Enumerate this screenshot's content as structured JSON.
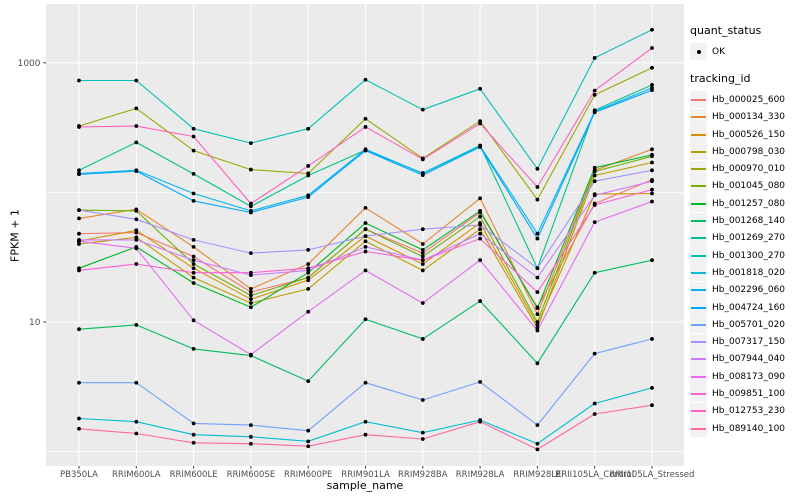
{
  "chart_data": {
    "type": "line",
    "title": "",
    "xlabel": "sample_name",
    "ylabel": "FPKM + 1",
    "y_scale": "log10",
    "ylim": [
      1,
      2600
    ],
    "grid": true,
    "y_ticks_labeled": [
      10,
      1000
    ],
    "y_gridlines_major": [
      10,
      1000
    ],
    "y_gridlines_minor": [
      1,
      100
    ],
    "legend_position": "right",
    "categories": [
      "PB350LA",
      "RRIM600LA",
      "RRIM600LE",
      "RRIM600SE",
      "RRIM600PE",
      "RRIM901LA",
      "RRIM928BA",
      "RRIM928LA",
      "RRIM928LE",
      "RRII105LA_Control",
      "RRII105LA_Stressed"
    ],
    "legend": {
      "quant_status_title": "quant_status",
      "quant_status_items": [
        "OK"
      ],
      "tracking_title": "tracking_id"
    },
    "point_color": "#000000",
    "series": [
      {
        "name": "Hb_000025_600",
        "color": "#F8766D",
        "values": [
          48,
          49,
          32,
          17,
          22,
          52,
          34,
          70,
          13,
          82,
          125
        ]
      },
      {
        "name": "Hb_000134_330",
        "color": "#E9842C",
        "values": [
          63,
          74,
          38,
          18,
          28,
          76,
          40,
          90,
          11.5,
          148,
          215
        ]
      },
      {
        "name": "Hb_000526_150",
        "color": "#D69100",
        "values": [
          42,
          51,
          26,
          15,
          21,
          46,
          28,
          58,
          9.5,
          97,
          98
        ]
      },
      {
        "name": "Hb_000798_030",
        "color": "#BC9D00",
        "values": [
          40,
          45,
          22,
          14,
          18,
          42,
          25,
          52,
          9,
          135,
          170
        ]
      },
      {
        "name": "Hb_000970_010",
        "color": "#9CA700",
        "values": [
          325,
          445,
          210,
          150,
          140,
          370,
          183,
          355,
          88,
          565,
          915
        ]
      },
      {
        "name": "Hb_001045_080",
        "color": "#6FB000",
        "values": [
          73,
          72,
          28,
          16,
          22,
          52,
          32,
          65,
          10,
          145,
          190
        ]
      },
      {
        "name": "Hb_001257_080",
        "color": "#00B822",
        "values": [
          26,
          38,
          20,
          13,
          24,
          58,
          36,
          72,
          12.8,
          155,
          195
        ]
      },
      {
        "name": "Hb_001268_140",
        "color": "#00BD61",
        "values": [
          8.8,
          9.5,
          6.2,
          5.5,
          3.5,
          10.5,
          7.4,
          14.5,
          4.8,
          24,
          30
        ]
      },
      {
        "name": "Hb_001269_270",
        "color": "#00C08E",
        "values": [
          148,
          243,
          139,
          78,
          135,
          212,
          141,
          230,
          26,
          430,
          675
        ]
      },
      {
        "name": "Hb_001300_270",
        "color": "#00C0B3",
        "values": [
          730,
          730,
          310,
          240,
          310,
          740,
          435,
          630,
          152,
          1090,
          1800
        ]
      },
      {
        "name": "Hb_001818_020",
        "color": "#00BDD3",
        "values": [
          1.8,
          1.7,
          1.35,
          1.3,
          1.2,
          1.7,
          1.4,
          1.75,
          1.15,
          2.35,
          3.1
        ]
      },
      {
        "name": "Hb_002296_060",
        "color": "#00B5EE",
        "values": [
          140,
          148,
          98,
          72,
          95,
          215,
          140,
          228,
          48,
          420,
          640
        ]
      },
      {
        "name": "Hb_004724_160",
        "color": "#00A7FF",
        "values": [
          138,
          146,
          86,
          70,
          92,
          210,
          136,
          224,
          44,
          415,
          615
        ]
      },
      {
        "name": "Hb_005701_020",
        "color": "#6FA1FF",
        "values": [
          3.4,
          3.4,
          1.65,
          1.6,
          1.45,
          3.4,
          2.5,
          3.45,
          1.6,
          5.7,
          7.4
        ]
      },
      {
        "name": "Hb_007317_150",
        "color": "#A491FF",
        "values": [
          73,
          62,
          43,
          34,
          36,
          46,
          52,
          56,
          26,
          122,
          148
        ]
      },
      {
        "name": "Hb_007944_040",
        "color": "#CC7DFF",
        "values": [
          43,
          43,
          30,
          23,
          25,
          38,
          30,
          48,
          22,
          95,
          122
        ]
      },
      {
        "name": "Hb_008173_090",
        "color": "#E76BF3",
        "values": [
          42,
          37,
          10.3,
          5.6,
          12,
          25,
          14,
          30,
          8.6,
          59,
          85
        ]
      },
      {
        "name": "Hb_009851_100",
        "color": "#FB61D7",
        "values": [
          25,
          28,
          24,
          24,
          26,
          35,
          30,
          44,
          17,
          80,
          105
        ]
      },
      {
        "name": "Hb_012753_230",
        "color": "#FF61C2",
        "values": [
          320,
          325,
          270,
          82,
          160,
          320,
          180,
          340,
          110,
          610,
          1300
        ]
      },
      {
        "name": "Hb_089140_100",
        "color": "#FF68A0",
        "values": [
          1.5,
          1.38,
          1.17,
          1.15,
          1.1,
          1.35,
          1.25,
          1.7,
          1.04,
          1.95,
          2.28
        ]
      }
    ],
    "style": {
      "panel_bg": "#EBEBEB",
      "gridline_color": "#FFFFFF",
      "tick_label_color": "#4D4D4D",
      "legend_key_bg": "#F2F2F2"
    }
  }
}
